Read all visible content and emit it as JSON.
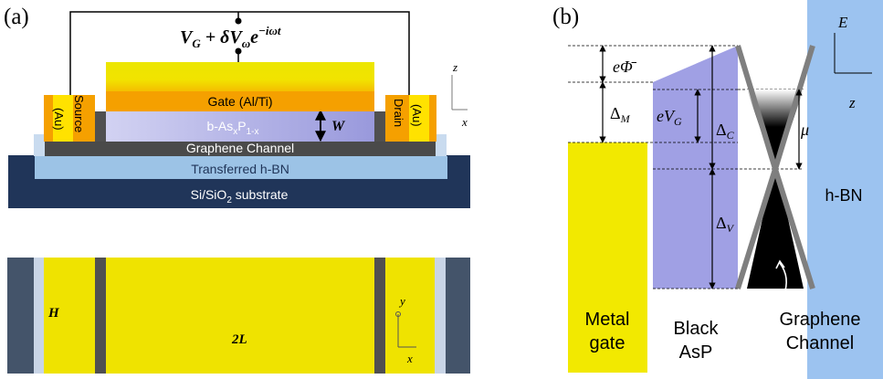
{
  "panel_a": {
    "label": "(a)",
    "formula": {
      "prefix": "V",
      "sub1": "G",
      "mid": " + δV",
      "sub2": "ω",
      "e": "e",
      "sup": "−iωt"
    },
    "layers": {
      "gate": "Gate (Al/Ti)",
      "bas": {
        "base": "b-As",
        "x": "x",
        "p": "P",
        "sub": "1-x"
      },
      "graphene": "Graphene Channel",
      "hbn": "Transferred h-BN",
      "substrate": {
        "base": "Si/SiO",
        "sub": "2",
        "rest": " substrate"
      }
    },
    "source": {
      "name": "Source",
      "metal": "(Au)"
    },
    "drain": {
      "name": "Drain",
      "metal": "(Au)"
    },
    "thickness_label": "W",
    "axes_side": {
      "vertical": "z",
      "horizontal": "x"
    },
    "axes_top": {
      "vertical": "y",
      "horizontal": "x"
    },
    "height_label": "H",
    "length_label": "2L"
  },
  "panel_b": {
    "label": "(b)",
    "energy_axis": {
      "vertical": "E",
      "horizontal": "z"
    },
    "labels": {
      "phi": "eΦ̄",
      "delta_m": {
        "base": "Δ",
        "sub": "M"
      },
      "evg": {
        "base": "eV",
        "sub": "G"
      },
      "delta_c": {
        "base": "Δ",
        "sub": "C"
      },
      "delta_v": {
        "base": "Δ",
        "sub": "V"
      },
      "mu": "μ",
      "hbn": "h-BN",
      "metal_gate": [
        "Metal",
        "gate"
      ],
      "black_asp": [
        "Black",
        "AsP"
      ],
      "graphene": [
        "Graphene",
        "Channel"
      ]
    }
  },
  "colors": {
    "gold": "#f5a000",
    "yellow": "#f2e900",
    "purple": "#9d9de0",
    "graphite": "#4a4a4a",
    "hbn_blue": "#9cc3e6",
    "navy": "#1f3864",
    "substrate_navy": "#203559"
  }
}
